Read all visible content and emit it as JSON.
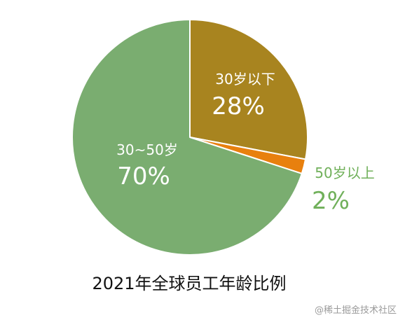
{
  "chart_data": {
    "type": "pie",
    "title": "2021年全球员工年龄比例",
    "start_angle_deg": 0,
    "direction": "clockwise",
    "slices": [
      {
        "name": "30岁以下",
        "value": 28,
        "label": "28%",
        "color": "#a8841f"
      },
      {
        "name": "50岁以上",
        "value": 2,
        "label": "2%",
        "color": "#e8800e"
      },
      {
        "name": "30~50岁",
        "value": 70,
        "label": "70%",
        "color": "#7aad70"
      }
    ]
  },
  "colors": {
    "outer_label": "#70b05a",
    "inner_label": "#ffffff",
    "slice_border": "#ffffff"
  },
  "watermark": "@稀土掘金技术社区"
}
